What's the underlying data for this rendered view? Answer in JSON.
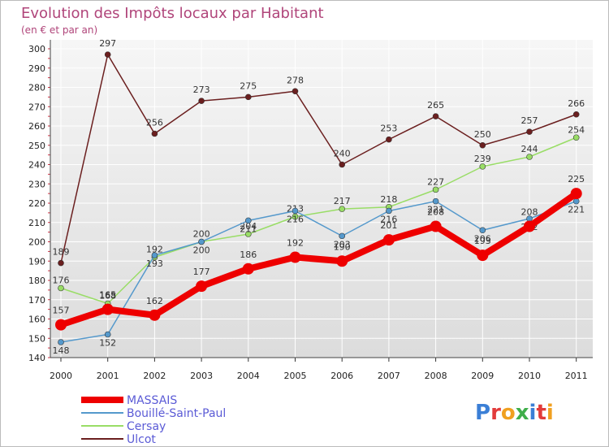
{
  "chart_data": {
    "type": "line",
    "title": "Evolution des Impôts locaux par Habitant",
    "subtitle": "(en € et par an)",
    "xlabel": "",
    "ylabel": "",
    "ylim": [
      140,
      300
    ],
    "y_ticks": [
      140,
      150,
      160,
      170,
      180,
      190,
      200,
      210,
      220,
      230,
      240,
      250,
      260,
      270,
      280,
      290,
      300
    ],
    "categories": [
      "2000",
      "2001",
      "2002",
      "2003",
      "2004",
      "2005",
      "2006",
      "2007",
      "2008",
      "2009",
      "2010",
      "2011"
    ],
    "grid": true,
    "legend_position": "bottom-left",
    "series": [
      {
        "name": "MASSAIS",
        "color": "#ee0000",
        "values": [
          157,
          165,
          162,
          177,
          186,
          192,
          190,
          201,
          208,
          193,
          208,
          225
        ]
      },
      {
        "name": "Bouillé-Saint-Paul",
        "color": "#5599cc",
        "values": [
          148,
          152,
          193,
          200,
          211,
          216,
          203,
          216,
          221,
          206,
          212,
          221
        ]
      },
      {
        "name": "Cersay",
        "color": "#99dd66",
        "values": [
          176,
          168,
          192,
          200,
          204,
          213,
          217,
          218,
          227,
          239,
          244,
          254
        ]
      },
      {
        "name": "Ulcot",
        "color": "#6b1f1f",
        "values": [
          189,
          297,
          256,
          273,
          275,
          278,
          240,
          253,
          265,
          250,
          257,
          266
        ]
      }
    ]
  },
  "branding": {
    "logo_text": "Proxiti"
  }
}
